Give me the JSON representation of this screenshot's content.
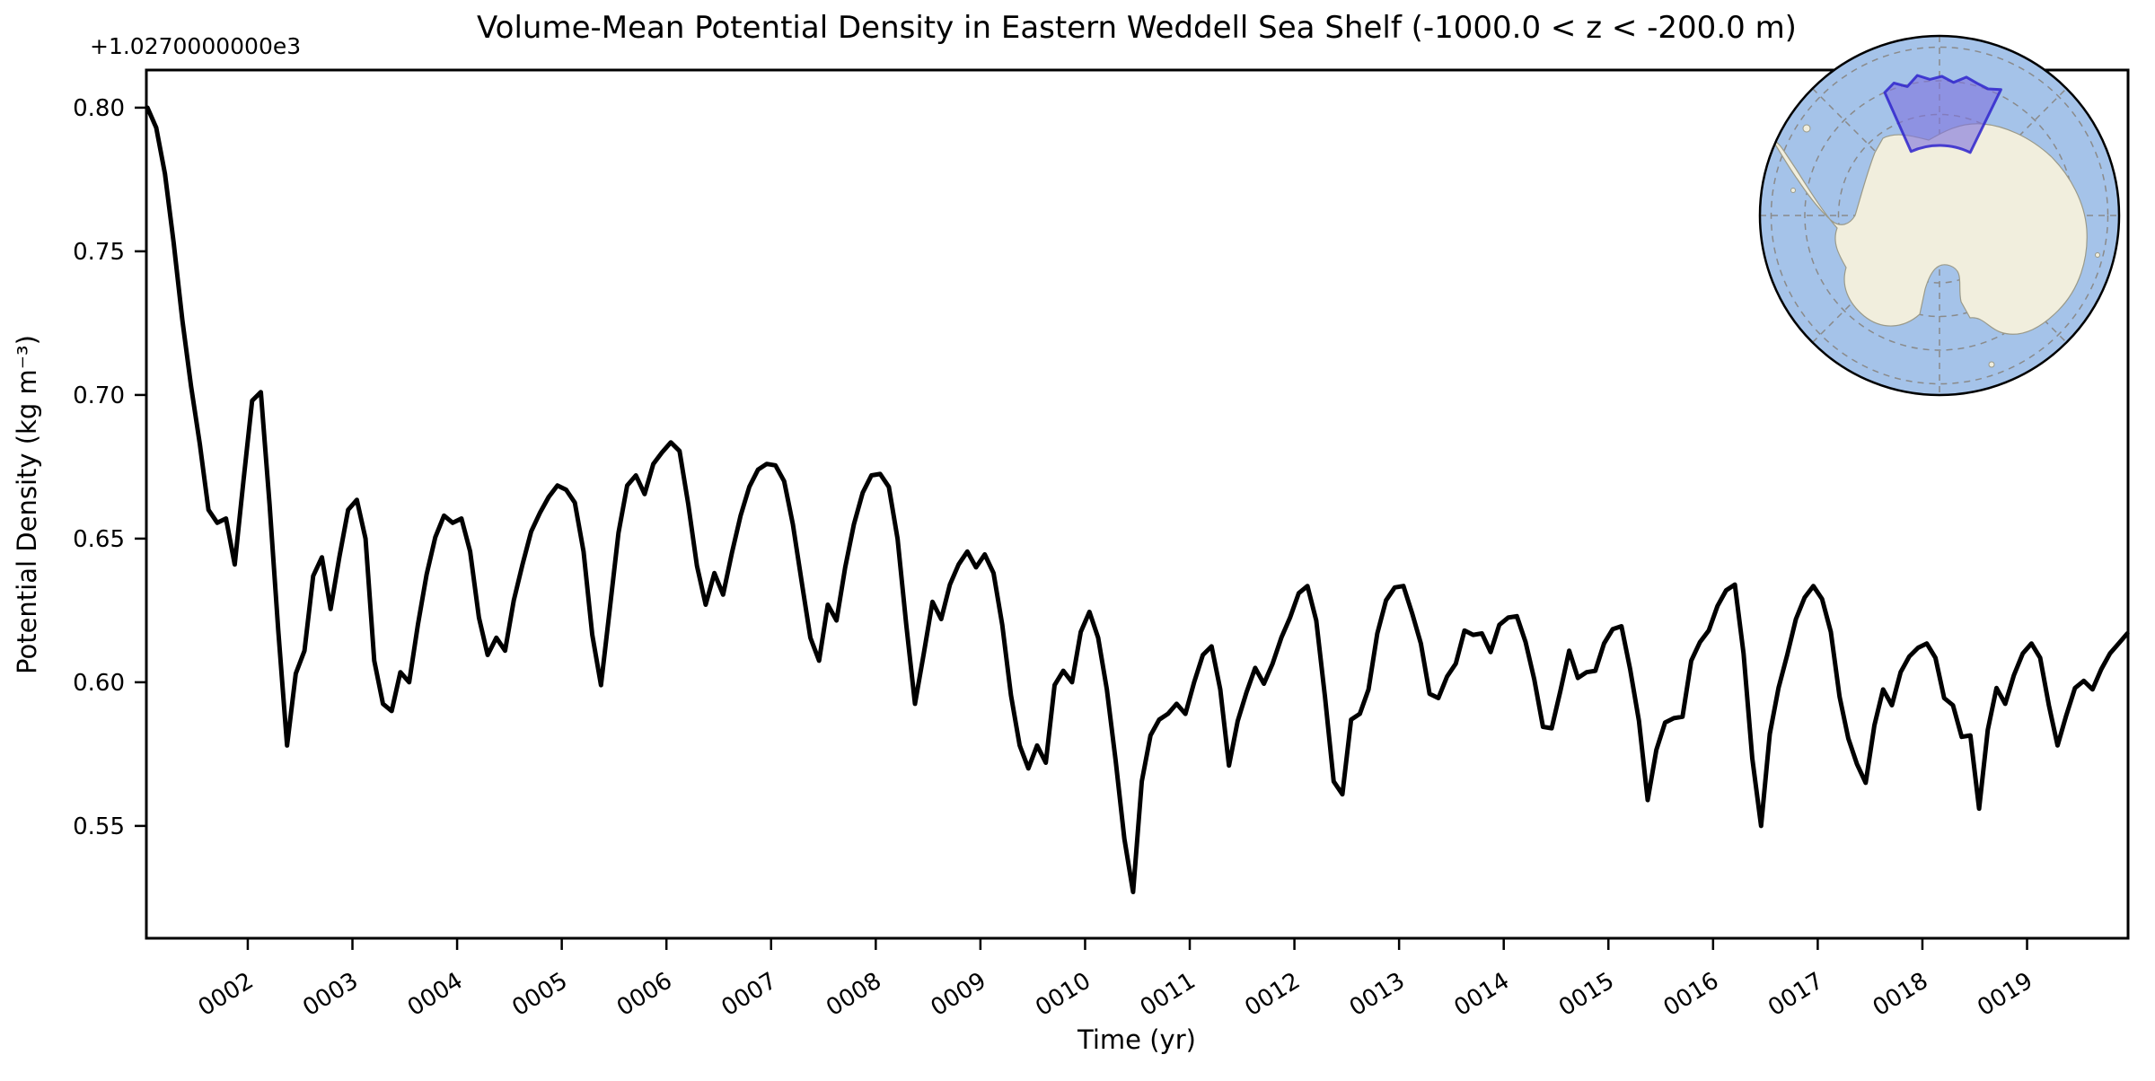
{
  "figure": {
    "title": "Volume-Mean Potential Density in Eastern Weddell Sea Shelf (-1000.0 < z < -200.0 m)",
    "xlabel": "Time (yr)",
    "ylabel": "Potential Density (kg m⁻³)",
    "y_offset_text": "+1.0270000000e3",
    "background_color": "#ffffff",
    "spine_color": "#000000"
  },
  "chart_data": {
    "type": "line",
    "title": "Volume-Mean Potential Density in Eastern Weddell Sea Shelf (-1000.0 < z < -200.0 m)",
    "xlabel": "Time (yr)",
    "ylabel": "Potential Density (kg m⁻³)",
    "y_offset": 1027.0,
    "y_offset_label": "+1.0270000000e3",
    "line_color": "#000000",
    "line_width": 5,
    "grid": false,
    "legend_position": "none",
    "xlim": [
      1.031,
      19.965
    ],
    "ylim": [
      0.5109,
      0.8131
    ],
    "x_ticks": [
      "0002",
      "0003",
      "0004",
      "0005",
      "0006",
      "0007",
      "0008",
      "0009",
      "0010",
      "0011",
      "0012",
      "0013",
      "0014",
      "0015",
      "0016",
      "0017",
      "0018",
      "0019"
    ],
    "x_tick_values": [
      2,
      3,
      4,
      5,
      6,
      7,
      8,
      9,
      10,
      11,
      12,
      13,
      14,
      15,
      16,
      17,
      18,
      19
    ],
    "x_tick_rotation_deg": 32,
    "y_ticks": [
      "0.80",
      "0.75",
      "0.70",
      "0.65",
      "0.60",
      "0.55"
    ],
    "y_tick_values": [
      0.8,
      0.75,
      0.7,
      0.65,
      0.6,
      0.55
    ],
    "sampling": "monthly, 12 points per model year, years 0001-0019",
    "monthly_values_by_year": {
      "1": [
        0.8,
        0.793,
        0.777,
        0.753,
        0.726,
        0.703,
        0.683,
        0.66,
        0.6555,
        0.657,
        0.641,
        0.67
      ],
      "2": [
        0.698,
        0.701,
        0.662,
        0.618,
        0.578,
        0.603,
        0.611,
        0.637,
        0.6435,
        0.6255,
        0.6435,
        0.66
      ],
      "3": [
        0.6635,
        0.65,
        0.6075,
        0.5925,
        0.59,
        0.6035,
        0.6,
        0.62,
        0.6375,
        0.6505,
        0.658,
        0.6555
      ],
      "4": [
        0.657,
        0.6455,
        0.6225,
        0.6095,
        0.6155,
        0.611,
        0.6285,
        0.641,
        0.6525,
        0.659,
        0.6645,
        0.6685
      ],
      "5": [
        0.667,
        0.6625,
        0.6455,
        0.6165,
        0.599,
        0.6255,
        0.652,
        0.6685,
        0.672,
        0.6655,
        0.676,
        0.68
      ],
      "6": [
        0.6835,
        0.6805,
        0.662,
        0.6405,
        0.627,
        0.638,
        0.6305,
        0.645,
        0.658,
        0.668,
        0.674,
        0.676
      ],
      "7": [
        0.6755,
        0.67,
        0.655,
        0.635,
        0.6155,
        0.6075,
        0.627,
        0.6215,
        0.64,
        0.655,
        0.666,
        0.672
      ],
      "8": [
        0.6725,
        0.668,
        0.65,
        0.62,
        0.5925,
        0.61,
        0.628,
        0.622,
        0.634,
        0.641,
        0.6455,
        0.64
      ],
      "9": [
        0.6445,
        0.638,
        0.62,
        0.5955,
        0.578,
        0.57,
        0.578,
        0.572,
        0.599,
        0.604,
        0.6,
        0.6175
      ],
      "10": [
        0.6245,
        0.6155,
        0.5975,
        0.573,
        0.5455,
        0.527,
        0.5655,
        0.5815,
        0.587,
        0.589,
        0.5925,
        0.589
      ],
      "11": [
        0.6,
        0.6095,
        0.6125,
        0.5975,
        0.571,
        0.5865,
        0.5965,
        0.605,
        0.5995,
        0.6065,
        0.6155,
        0.6225
      ],
      "12": [
        0.631,
        0.6335,
        0.6215,
        0.595,
        0.5655,
        0.561,
        0.587,
        0.589,
        0.5975,
        0.617,
        0.6285,
        0.633
      ],
      "13": [
        0.6335,
        0.624,
        0.6135,
        0.596,
        0.5945,
        0.602,
        0.6065,
        0.618,
        0.6165,
        0.617,
        0.6105,
        0.62
      ],
      "14": [
        0.6225,
        0.623,
        0.614,
        0.601,
        0.5845,
        0.584,
        0.597,
        0.611,
        0.6015,
        0.6035,
        0.604,
        0.6135
      ],
      "15": [
        0.6185,
        0.6195,
        0.6045,
        0.5865,
        0.559,
        0.5765,
        0.586,
        0.5875,
        0.588,
        0.6075,
        0.614,
        0.618
      ],
      "16": [
        0.6265,
        0.632,
        0.634,
        0.61,
        0.5735,
        0.55,
        0.582,
        0.598,
        0.6095,
        0.622,
        0.6295,
        0.6335
      ],
      "17": [
        0.629,
        0.6175,
        0.595,
        0.5805,
        0.5715,
        0.565,
        0.585,
        0.5975,
        0.592,
        0.6035,
        0.609,
        0.612
      ],
      "18": [
        0.6135,
        0.6085,
        0.5945,
        0.592,
        0.581,
        0.5815,
        0.556,
        0.5835,
        0.598,
        0.5925,
        0.6025,
        0.61
      ],
      "19": [
        0.6135,
        0.6085,
        0.592,
        0.578,
        0.5885,
        0.598,
        0.6005,
        0.5975,
        0.6045,
        0.61,
        0.6135,
        0.617
      ]
    }
  },
  "inset_map": {
    "description": "South polar stereographic map of Antarctica with highlighted sector over the Eastern Weddell Sea shelf",
    "colors": {
      "ocean": "#a5c3e9",
      "land": "#f1eedd",
      "coastline": "#9a9a8a",
      "graticule": "#8a8a8a",
      "region_fill": "#7f75dd",
      "region_border": "#2f24cc",
      "outline": "#000000"
    }
  }
}
